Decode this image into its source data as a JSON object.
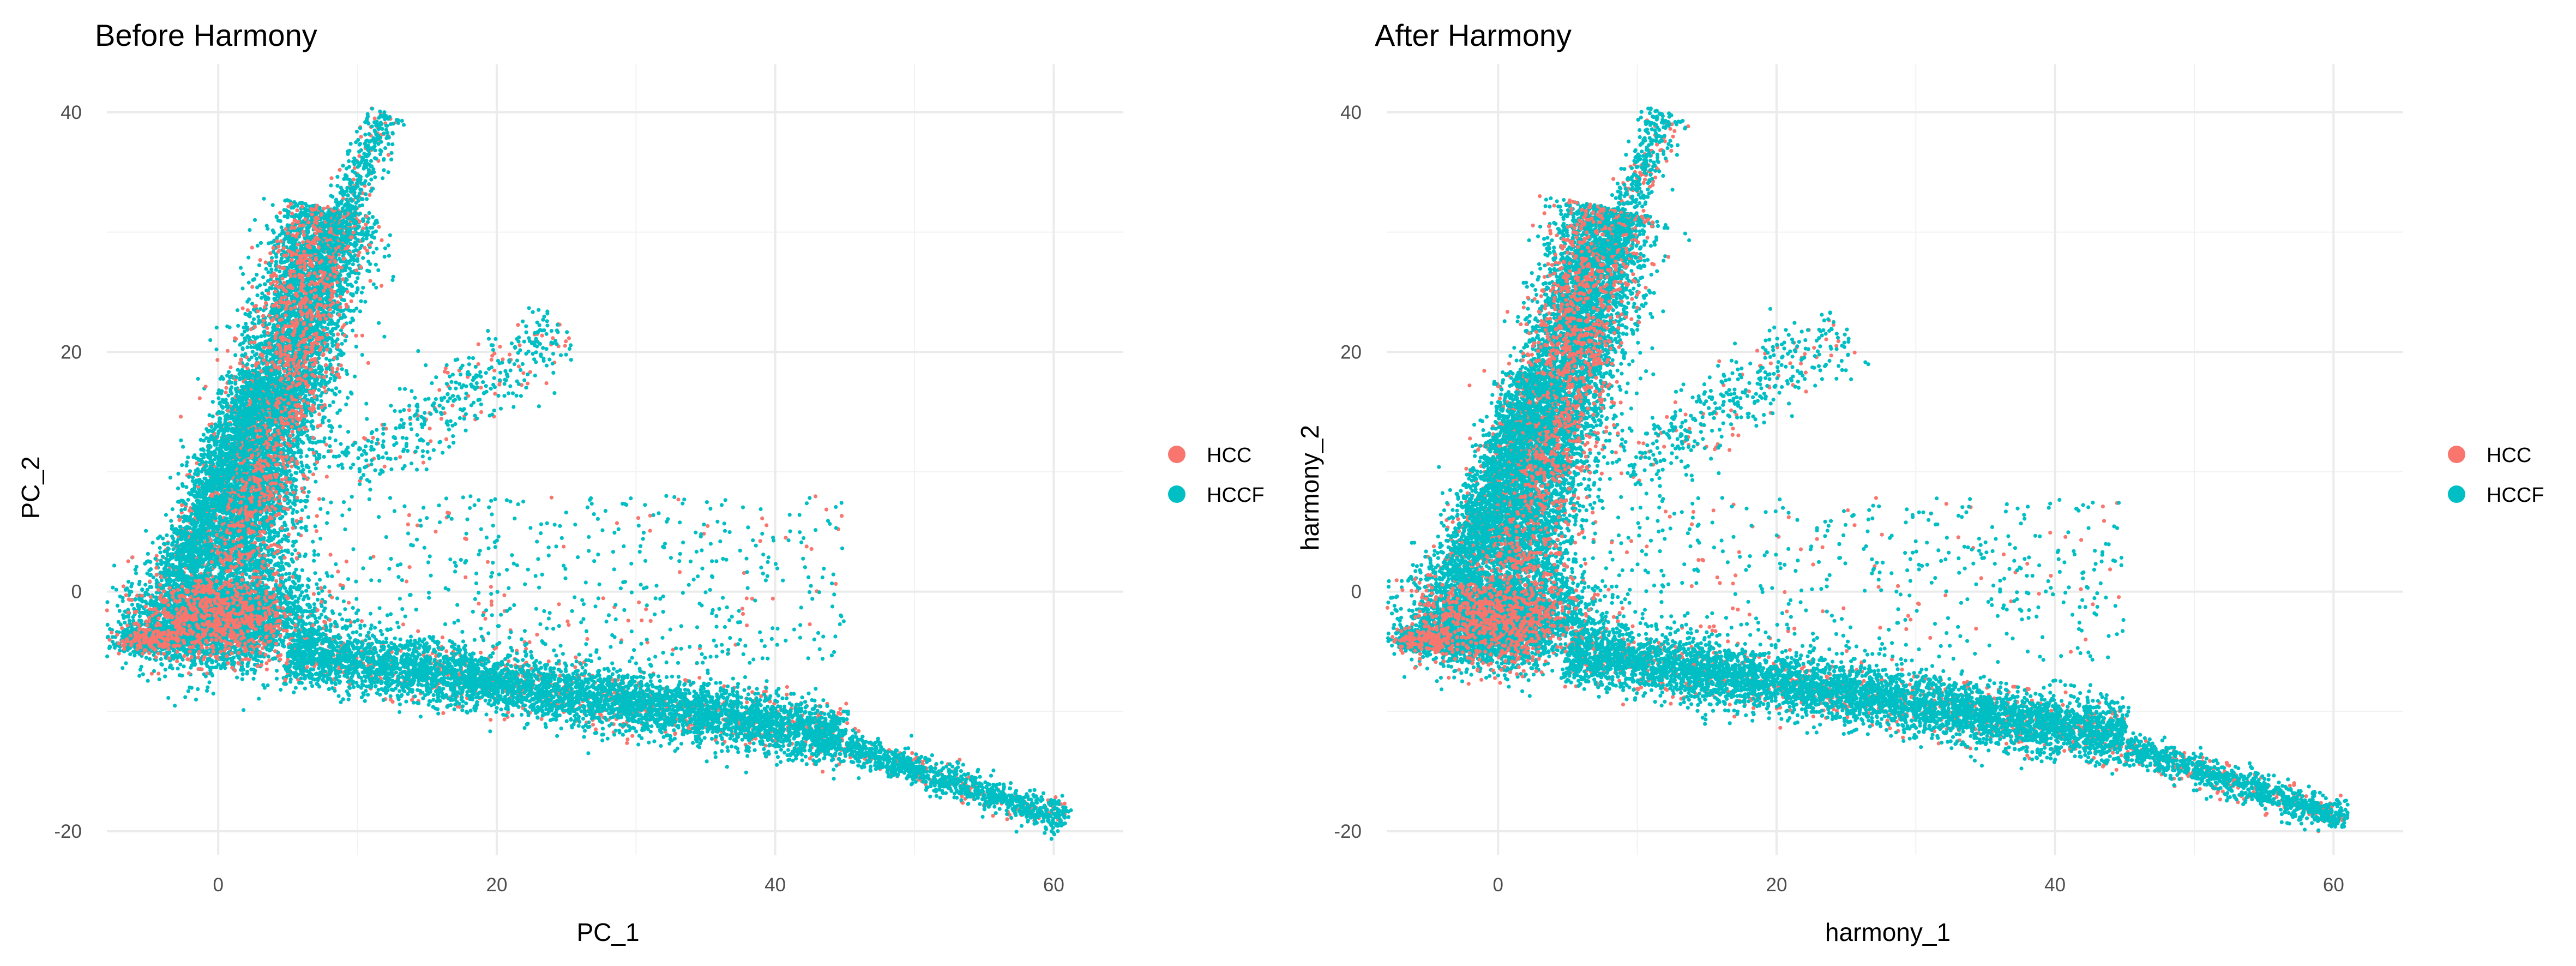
{
  "colors": {
    "HCC": "#F8766D",
    "HCCF": "#00BFC4"
  },
  "chart_data": [
    {
      "type": "scatter",
      "title": "Before Harmony",
      "xlabel": "PC_1",
      "ylabel": "PC_2",
      "xlim": [
        -8,
        65
      ],
      "ylim": [
        -22,
        44
      ],
      "x_ticks": [
        0,
        20,
        40,
        60
      ],
      "y_ticks": [
        -20,
        0,
        20,
        40
      ],
      "grid": true,
      "legend_position": "right",
      "series": [
        {
          "name": "HCC",
          "color": "#F8766D"
        },
        {
          "name": "HCCF",
          "color": "#00BFC4"
        }
      ],
      "clusters": [
        {
          "kind": "blob",
          "center": [
            0,
            -2
          ],
          "spread": [
            3,
            2
          ],
          "share": 0.2
        },
        {
          "kind": "blob",
          "center": [
            -5,
            -4
          ],
          "spread": [
            1.2,
            0.5
          ],
          "share": 0.03
        },
        {
          "kind": "band",
          "from": [
            1,
            2
          ],
          "to": [
            8,
            32
          ],
          "width": 3.5,
          "share": 0.32
        },
        {
          "kind": "band",
          "from": [
            -3,
            1
          ],
          "to": [
            3,
            18
          ],
          "width": 2,
          "share": 0.08
        },
        {
          "kind": "band",
          "from": [
            8,
            28
          ],
          "to": [
            12,
            40
          ],
          "width": 1.5,
          "share": 0.02
        },
        {
          "kind": "band",
          "from": [
            5,
            -5
          ],
          "to": [
            45,
            -12
          ],
          "width": 2.5,
          "share": 0.25
        },
        {
          "kind": "band",
          "from": [
            45,
            -13
          ],
          "to": [
            61,
            -19
          ],
          "width": 1.3,
          "share": 0.05
        },
        {
          "kind": "scatter",
          "x": [
            0,
            45
          ],
          "y": [
            -6,
            8
          ],
          "share": 0.03
        },
        {
          "kind": "band",
          "from": [
            9,
            10
          ],
          "to": [
            25,
            22
          ],
          "width": 3,
          "share": 0.02
        }
      ]
    },
    {
      "type": "scatter",
      "title": "After Harmony",
      "xlabel": "harmony_1",
      "ylabel": "harmony_2",
      "xlim": [
        -8,
        65
      ],
      "ylim": [
        -22,
        44
      ],
      "x_ticks": [
        0,
        20,
        40,
        60
      ],
      "y_ticks": [
        -20,
        0,
        20,
        40
      ],
      "grid": true,
      "legend_position": "right",
      "series": [
        {
          "name": "HCC",
          "color": "#F8766D"
        },
        {
          "name": "HCCF",
          "color": "#00BFC4"
        }
      ],
      "clusters": [
        {
          "kind": "blob",
          "center": [
            0,
            -2
          ],
          "spread": [
            3,
            2
          ],
          "share": 0.2
        },
        {
          "kind": "blob",
          "center": [
            -5,
            -4
          ],
          "spread": [
            1.2,
            0.5
          ],
          "share": 0.03
        },
        {
          "kind": "band",
          "from": [
            1,
            2
          ],
          "to": [
            8,
            32
          ],
          "width": 3.5,
          "share": 0.32
        },
        {
          "kind": "band",
          "from": [
            -3,
            1
          ],
          "to": [
            3,
            18
          ],
          "width": 2,
          "share": 0.08
        },
        {
          "kind": "band",
          "from": [
            8,
            28
          ],
          "to": [
            12,
            40
          ],
          "width": 1.5,
          "share": 0.02
        },
        {
          "kind": "band",
          "from": [
            5,
            -5
          ],
          "to": [
            45,
            -12
          ],
          "width": 2.5,
          "share": 0.25
        },
        {
          "kind": "band",
          "from": [
            45,
            -13
          ],
          "to": [
            61,
            -19
          ],
          "width": 1.3,
          "share": 0.05
        },
        {
          "kind": "scatter",
          "x": [
            0,
            45
          ],
          "y": [
            -6,
            8
          ],
          "share": 0.03
        },
        {
          "kind": "band",
          "from": [
            9,
            10
          ],
          "to": [
            25,
            22
          ],
          "width": 3,
          "share": 0.02
        }
      ]
    }
  ]
}
